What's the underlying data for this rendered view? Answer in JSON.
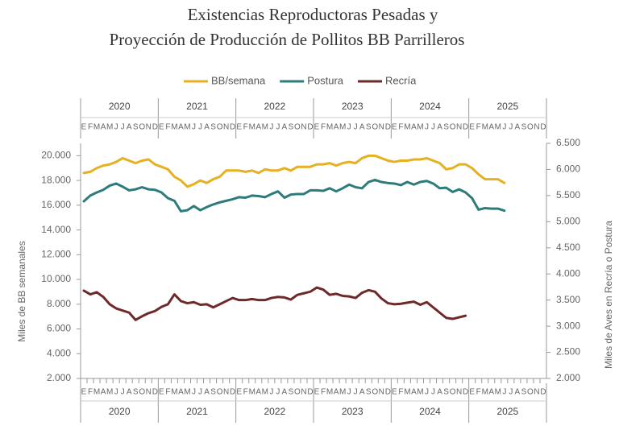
{
  "chart_data": {
    "type": "line",
    "title_lines": [
      "Existencias Reproductoras Pesadas y",
      "Proyección de Producción de Pollitos BB Parrilleros"
    ],
    "y_label": "Miles de BB semanales",
    "y2_label": "Miles de Aves en Recría o Postura",
    "years": [
      "2020",
      "2021",
      "2022",
      "2023",
      "2024",
      "2025"
    ],
    "categories": [
      "E",
      "F",
      "M",
      "A",
      "M",
      "J",
      "J",
      "A",
      "S",
      "O",
      "N",
      "D",
      "E",
      "F",
      "M",
      "A",
      "M",
      "J",
      "J",
      "A",
      "S",
      "O",
      "N",
      "D",
      "E",
      "F",
      "M",
      "A",
      "M",
      "J",
      "J",
      "A",
      "S",
      "O",
      "N",
      "D",
      "E",
      "F",
      "M",
      "A",
      "M",
      "J",
      "J",
      "A",
      "S",
      "O",
      "N",
      "D",
      "E",
      "F",
      "M",
      "A",
      "M",
      "J",
      "J",
      "A",
      "S",
      "O",
      "N",
      "D",
      "E",
      "F",
      "M",
      "A",
      "M",
      "J",
      "J",
      "A",
      "S",
      "O",
      "N",
      "D"
    ],
    "series": [
      {
        "name": "BB/semana",
        "color": "#e6b020",
        "values": [
          18600,
          18700,
          19000,
          19200,
          19300,
          19500,
          19800,
          19600,
          19400,
          19600,
          19700,
          19300,
          19100,
          18900,
          18300,
          18000,
          17500,
          17700,
          18000,
          17800,
          18100,
          18300,
          18800,
          18800,
          18800,
          18700,
          18800,
          18600,
          18900,
          18800,
          18800,
          19000,
          18800,
          19100,
          19100,
          19100,
          19300,
          19300,
          19400,
          19200,
          19400,
          19500,
          19400,
          19800,
          20000,
          20000,
          19800,
          19600,
          19500,
          19600,
          19600,
          19700,
          19700,
          19800,
          19600,
          19400,
          18900,
          19000,
          19300,
          19300,
          19000,
          18500,
          18100,
          18100,
          18100,
          17800,
          null,
          null,
          null,
          null,
          null,
          null
        ]
      },
      {
        "name": "Postura",
        "color": "#2e7b7b",
        "axis": "y2",
        "values": [
          5390,
          5500,
          5560,
          5610,
          5690,
          5730,
          5670,
          5600,
          5620,
          5660,
          5620,
          5610,
          5560,
          5450,
          5400,
          5200,
          5220,
          5300,
          5220,
          5280,
          5330,
          5370,
          5400,
          5430,
          5470,
          5460,
          5500,
          5490,
          5470,
          5530,
          5580,
          5460,
          5520,
          5530,
          5530,
          5600,
          5600,
          5590,
          5640,
          5580,
          5640,
          5710,
          5660,
          5640,
          5760,
          5800,
          5760,
          5740,
          5730,
          5700,
          5760,
          5710,
          5760,
          5780,
          5730,
          5640,
          5650,
          5570,
          5620,
          5560,
          5450,
          5230,
          5260,
          5250,
          5250,
          5210,
          null,
          null,
          null,
          null,
          null,
          null
        ]
      },
      {
        "name": "Recría",
        "color": "#6e2a2a",
        "axis": "y2",
        "values": [
          3680,
          3610,
          3650,
          3560,
          3420,
          3340,
          3300,
          3260,
          3120,
          3190,
          3250,
          3290,
          3370,
          3420,
          3610,
          3480,
          3440,
          3460,
          3410,
          3420,
          3360,
          3420,
          3480,
          3540,
          3500,
          3500,
          3520,
          3500,
          3500,
          3540,
          3560,
          3550,
          3510,
          3600,
          3630,
          3660,
          3740,
          3700,
          3600,
          3620,
          3580,
          3570,
          3540,
          3640,
          3690,
          3660,
          3530,
          3440,
          3420,
          3430,
          3450,
          3470,
          3410,
          3460,
          3360,
          3260,
          3160,
          3140,
          3170,
          3200,
          null,
          null,
          null,
          null,
          null,
          null,
          null,
          null,
          null,
          null,
          null,
          null
        ]
      }
    ],
    "ylim": [
      2000,
      21000
    ],
    "yticks": [
      {
        "value": 2000,
        "label": "2.000"
      },
      {
        "value": 4000,
        "label": "4.000"
      },
      {
        "value": 6000,
        "label": "6.000"
      },
      {
        "value": 8000,
        "label": "8.000"
      },
      {
        "value": 10000,
        "label": "10.000"
      },
      {
        "value": 12000,
        "label": "12.000"
      },
      {
        "value": 14000,
        "label": "14.000"
      },
      {
        "value": 16000,
        "label": "16.000"
      },
      {
        "value": 18000,
        "label": "18.000"
      },
      {
        "value": 20000,
        "label": "20.000"
      }
    ],
    "y2lim": [
      2000,
      6500
    ],
    "y2ticks": [
      {
        "value": 2000,
        "label": "2.000"
      },
      {
        "value": 2500,
        "label": "2.500"
      },
      {
        "value": 3000,
        "label": "3.000"
      },
      {
        "value": 3500,
        "label": "3.500"
      },
      {
        "value": 4000,
        "label": "4.000"
      },
      {
        "value": 4500,
        "label": "4.500"
      },
      {
        "value": 5000,
        "label": "5.000"
      },
      {
        "value": 5500,
        "label": "5.500"
      },
      {
        "value": 6000,
        "label": "6.000"
      },
      {
        "value": 6500,
        "label": "6.500"
      }
    ],
    "legend": "top",
    "grid": false
  }
}
